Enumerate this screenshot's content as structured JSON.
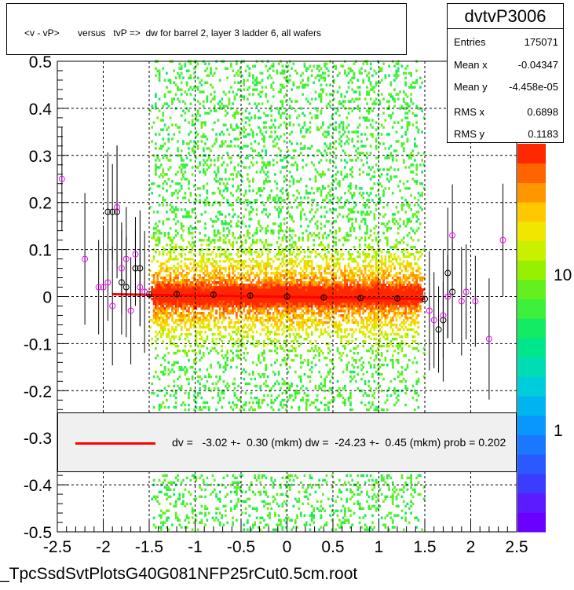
{
  "title": "<v - vP>       versus   tvP =>  dw for barrel 2, layer 3 ladder 6, all wafers",
  "stats": {
    "name": "dvtvP3006",
    "rows": [
      {
        "key": "Entries",
        "value": "175071"
      },
      {
        "key": "Mean x",
        "value": "-0.04347"
      },
      {
        "key": "Mean y",
        "value": "-4.458e-05"
      },
      {
        "key": "RMS x",
        "value": "0.6898"
      },
      {
        "key": "RMS y",
        "value": "0.1183"
      }
    ]
  },
  "fit_legend": {
    "text": "dv =   -3.02 +-  0.30 (mkm) dw =  -24.23 +-  0.45 (mkm) prob = 0.202",
    "line_color": "#ff0000"
  },
  "footer": "_TpcSsdSvtPlotsG40G081NFP25rCut0.5cm.root",
  "chart_data": {
    "type": "heatmap",
    "title": "<v - vP>       versus   tvP =>  dw for barrel 2, layer 3 ladder 6, all wafers",
    "xlim": [
      -2.5,
      2.5
    ],
    "ylim": [
      -0.5,
      0.5
    ],
    "x_ticks": [
      "-2.5",
      "-2",
      "-1.5",
      "-1",
      "-0.5",
      "0",
      "0.5",
      "1",
      "1.5",
      "2",
      "2.5"
    ],
    "y_ticks": [
      "-0.5",
      "-0.4",
      "-0.3",
      "-0.2",
      "-0.1",
      "0",
      "0.1",
      "0.2",
      "0.3",
      "0.4",
      "0.5"
    ],
    "z_ticks": [
      "1",
      "10"
    ],
    "z_scale": "log",
    "grid": true,
    "density_x_range": [
      -1.5,
      1.5
    ],
    "fit_line": {
      "color": "#ff0000",
      "x_range": [
        -1.9,
        1.5
      ],
      "y_values": [
        0.005,
        -0.005
      ]
    },
    "profile_black": [
      {
        "x": -1.95,
        "y": 0.18
      },
      {
        "x": -1.9,
        "y": 0.18
      },
      {
        "x": -1.85,
        "y": 0.18
      },
      {
        "x": -1.8,
        "y": 0.03
      },
      {
        "x": -1.75,
        "y": 0.02
      },
      {
        "x": -1.65,
        "y": 0.06
      },
      {
        "x": -1.6,
        "y": 0.06
      },
      {
        "x": -1.5,
        "y": 0.005
      },
      {
        "x": -1.2,
        "y": 0.005
      },
      {
        "x": -0.8,
        "y": 0.004
      },
      {
        "x": -0.4,
        "y": 0.002
      },
      {
        "x": 0.0,
        "y": 0.0
      },
      {
        "x": 0.4,
        "y": -0.002
      },
      {
        "x": 0.8,
        "y": -0.003
      },
      {
        "x": 1.2,
        "y": -0.004
      },
      {
        "x": 1.5,
        "y": -0.005
      },
      {
        "x": 1.65,
        "y": -0.07
      },
      {
        "x": 1.7,
        "y": -0.05
      },
      {
        "x": 1.75,
        "y": 0.05
      },
      {
        "x": 1.8,
        "y": 0.01
      }
    ],
    "profile_magenta": [
      {
        "x": -2.45,
        "y": 0.25
      },
      {
        "x": -2.2,
        "y": 0.08
      },
      {
        "x": -2.05,
        "y": 0.02
      },
      {
        "x": -2.0,
        "y": 0.02
      },
      {
        "x": -1.95,
        "y": 0.03
      },
      {
        "x": -1.9,
        "y": -0.02
      },
      {
        "x": -1.85,
        "y": 0.19
      },
      {
        "x": -1.8,
        "y": 0.06
      },
      {
        "x": -1.75,
        "y": 0.08
      },
      {
        "x": -1.7,
        "y": -0.03
      },
      {
        "x": -1.65,
        "y": 0.09
      },
      {
        "x": -1.6,
        "y": 0.02
      },
      {
        "x": -1.55,
        "y": 0.01
      },
      {
        "x": 1.55,
        "y": -0.03
      },
      {
        "x": 1.6,
        "y": -0.05
      },
      {
        "x": 1.7,
        "y": -0.04
      },
      {
        "x": 1.75,
        "y": 0.0
      },
      {
        "x": 1.8,
        "y": 0.13
      },
      {
        "x": 1.9,
        "y": -0.01
      },
      {
        "x": 1.95,
        "y": 0.01
      },
      {
        "x": 2.05,
        "y": -0.01
      },
      {
        "x": 2.2,
        "y": -0.09
      },
      {
        "x": 2.35,
        "y": 0.12
      }
    ]
  }
}
